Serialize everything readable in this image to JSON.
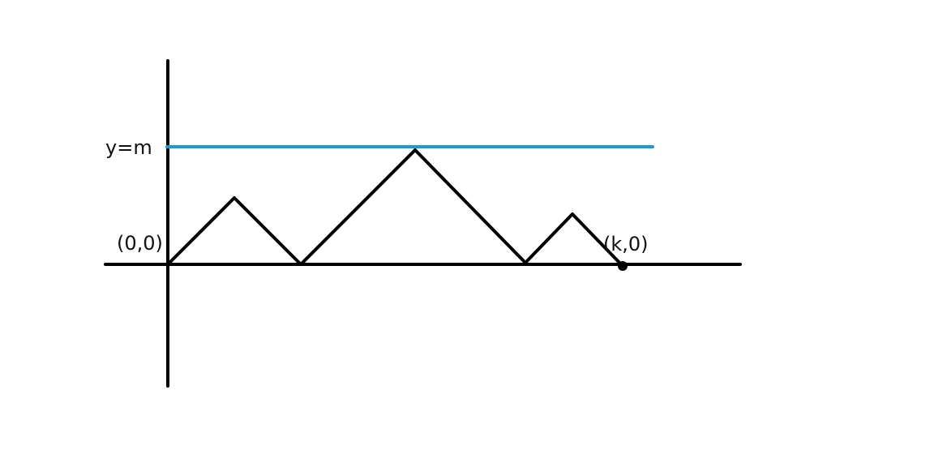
{
  "labels": {
    "level_line": "y=m",
    "origin": "(0,0)",
    "endpoint": "(k,0)"
  },
  "colors": {
    "axes": "#000000",
    "path": "#000000",
    "level_line": "#1a9bd7",
    "endpoint_dot": "#000000"
  }
}
